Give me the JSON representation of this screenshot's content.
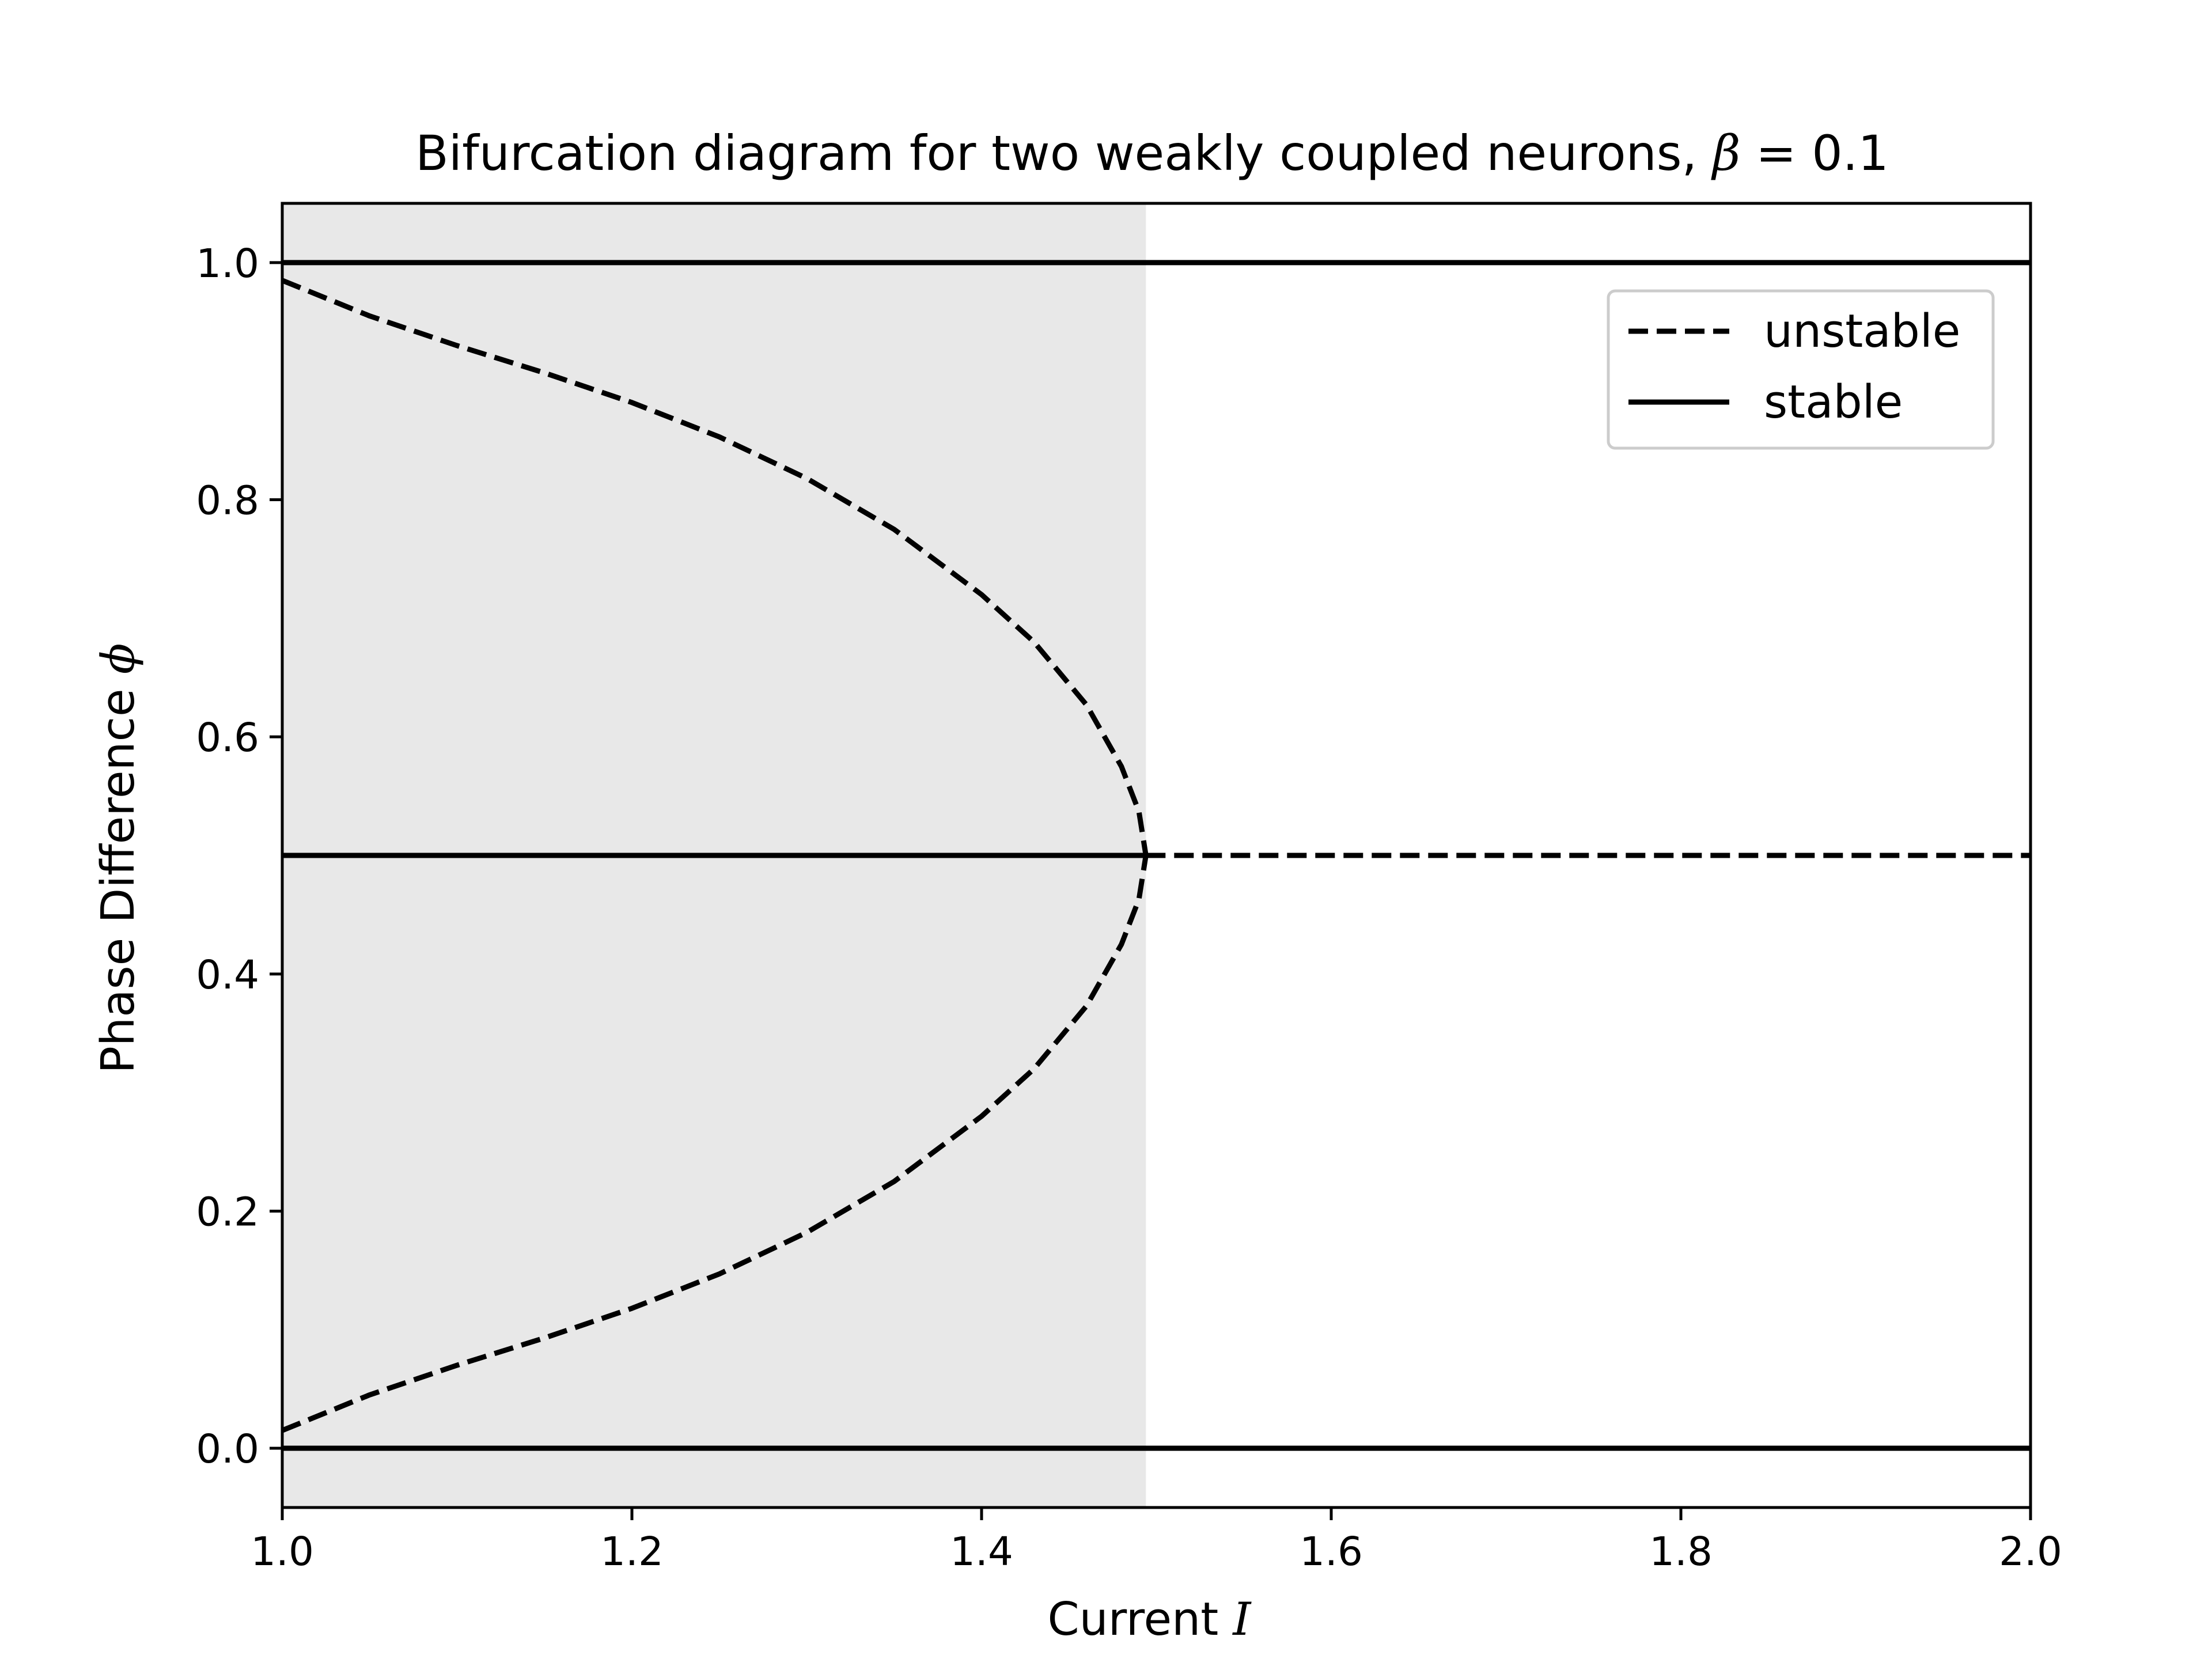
{
  "chart_data": {
    "type": "line",
    "title": "Bifurcation diagram for two weakly coupled neurons, ",
    "title_math": "β",
    "title_math_suffix": " = 0.1",
    "xlabel": "Current ",
    "xlabel_math": "I",
    "ylabel": "Phase Difference ",
    "ylabel_math": "ϕ",
    "xlim": [
      1.0,
      2.0
    ],
    "ylim": [
      -0.05,
      1.05
    ],
    "xticks": [
      1.0,
      1.2,
      1.4,
      1.6,
      1.8,
      2.0
    ],
    "xtick_labels": [
      "1.0",
      "1.2",
      "1.4",
      "1.6",
      "1.8",
      "2.0"
    ],
    "yticks": [
      0.0,
      0.2,
      0.4,
      0.6,
      0.8,
      1.0
    ],
    "ytick_labels": [
      "0.0",
      "0.2",
      "0.4",
      "0.6",
      "0.8",
      "1.0"
    ],
    "grid": false,
    "shaded_region": {
      "x": [
        1.0,
        1.494
      ],
      "color": "#e8e8e8"
    },
    "legend": {
      "placement": "upper right",
      "entries": [
        {
          "label": "unstable",
          "style": "dashed"
        },
        {
          "label": "stable",
          "style": "solid"
        }
      ]
    },
    "line_color": "#000000",
    "series": [
      {
        "style": "solid",
        "x": [
          1.0,
          2.0
        ],
        "y": [
          1.0,
          1.0
        ]
      },
      {
        "style": "solid",
        "x": [
          1.0,
          2.0
        ],
        "y": [
          0.0,
          0.0
        ]
      },
      {
        "style": "solid",
        "x": [
          1.0,
          1.494
        ],
        "y": [
          0.5,
          0.5
        ]
      },
      {
        "style": "dashed",
        "x": [
          1.494,
          2.0
        ],
        "y": [
          0.5,
          0.5
        ]
      },
      {
        "style": "dashed",
        "x": [
          1.0,
          1.05,
          1.1,
          1.15,
          1.2,
          1.25,
          1.3,
          1.35,
          1.4,
          1.43,
          1.46,
          1.48,
          1.49,
          1.494
        ],
        "y": [
          0.985,
          0.955,
          0.93,
          0.907,
          0.882,
          0.853,
          0.818,
          0.775,
          0.72,
          0.68,
          0.627,
          0.575,
          0.537,
          0.5
        ]
      },
      {
        "style": "dashed",
        "x": [
          1.0,
          1.05,
          1.1,
          1.15,
          1.2,
          1.25,
          1.3,
          1.35,
          1.4,
          1.43,
          1.46,
          1.48,
          1.49,
          1.494
        ],
        "y": [
          0.015,
          0.045,
          0.07,
          0.093,
          0.118,
          0.147,
          0.182,
          0.225,
          0.28,
          0.32,
          0.373,
          0.425,
          0.463,
          0.5
        ]
      }
    ]
  }
}
